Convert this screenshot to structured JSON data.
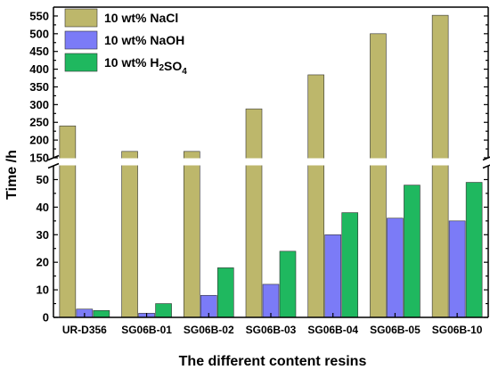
{
  "chart_data": {
    "type": "bar",
    "xlabel": "The different content resins",
    "ylabel": "Time /h",
    "categories": [
      "UR-D356",
      "SG06B-01",
      "SG06B-02",
      "SG06B-03",
      "SG06B-04",
      "SG06B-05",
      "SG06B-10"
    ],
    "series": [
      {
        "name": "10 wt% NaCl",
        "color": "#bdb76b",
        "values": [
          240,
          168,
          168,
          288,
          384,
          500,
          552
        ]
      },
      {
        "name": "10 wt% NaOH",
        "color": "#7b7bf7",
        "values": [
          3,
          1.5,
          8,
          12,
          30,
          36,
          35
        ]
      },
      {
        "name": "10 wt% H2SO4",
        "color": "#1fb85f",
        "values": [
          2.5,
          5,
          18,
          24,
          38,
          48,
          49
        ]
      }
    ],
    "legend_labels": [
      {
        "prefix": "10 wt% NaCl",
        "sub1": "",
        "mid": "",
        "sub2": ""
      },
      {
        "prefix": "10 wt% NaOH",
        "sub1": "",
        "mid": "",
        "sub2": ""
      },
      {
        "prefix": "10 wt% H",
        "sub1": "2",
        "mid": "SO",
        "sub2": "4"
      }
    ],
    "legend_position": "top-left",
    "y_axis_break": true,
    "ylim_lower": [
      0,
      55
    ],
    "ylim_upper": [
      150,
      575
    ],
    "yticks_lower": [
      "0",
      "10",
      "20",
      "30",
      "40",
      "50"
    ],
    "yticks_upper": [
      "150",
      "200",
      "250",
      "300",
      "350",
      "400",
      "450",
      "500",
      "550"
    ],
    "grid": false
  }
}
